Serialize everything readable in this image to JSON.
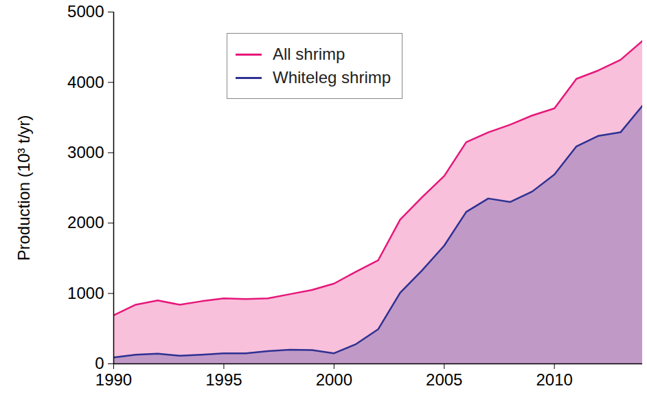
{
  "chart_data": {
    "type": "area",
    "y_label": "Production (10³ t/yr)",
    "x": [
      1990,
      1991,
      1992,
      1993,
      1994,
      1995,
      1996,
      1997,
      1998,
      1999,
      2000,
      2001,
      2002,
      2003,
      2004,
      2005,
      2006,
      2007,
      2008,
      2009,
      2010,
      2011,
      2012,
      2013,
      2014
    ],
    "series": [
      {
        "name": "All shrimp",
        "color": "#e6177a",
        "values": [
          690,
          840,
          900,
          840,
          890,
          930,
          920,
          930,
          990,
          1050,
          1140,
          1310,
          1470,
          2050,
          2370,
          2670,
          3150,
          3290,
          3400,
          3530,
          3630,
          4050,
          4170,
          4320,
          4590
        ]
      },
      {
        "name": "Whiteleg shrimp",
        "color": "#2e3192",
        "values": [
          90,
          130,
          145,
          115,
          130,
          150,
          150,
          180,
          200,
          195,
          150,
          280,
          490,
          1010,
          1330,
          1680,
          2160,
          2350,
          2300,
          2450,
          2690,
          3090,
          3240,
          3290,
          3670
        ]
      }
    ],
    "xlim": [
      1990,
      2014
    ],
    "xticks": [
      1990,
      1995,
      2000,
      2005,
      2010
    ],
    "ylim": [
      0,
      5000
    ],
    "yticks": [
      0,
      1000,
      2000,
      3000,
      4000,
      5000
    ],
    "legend": "top",
    "grid": false
  }
}
